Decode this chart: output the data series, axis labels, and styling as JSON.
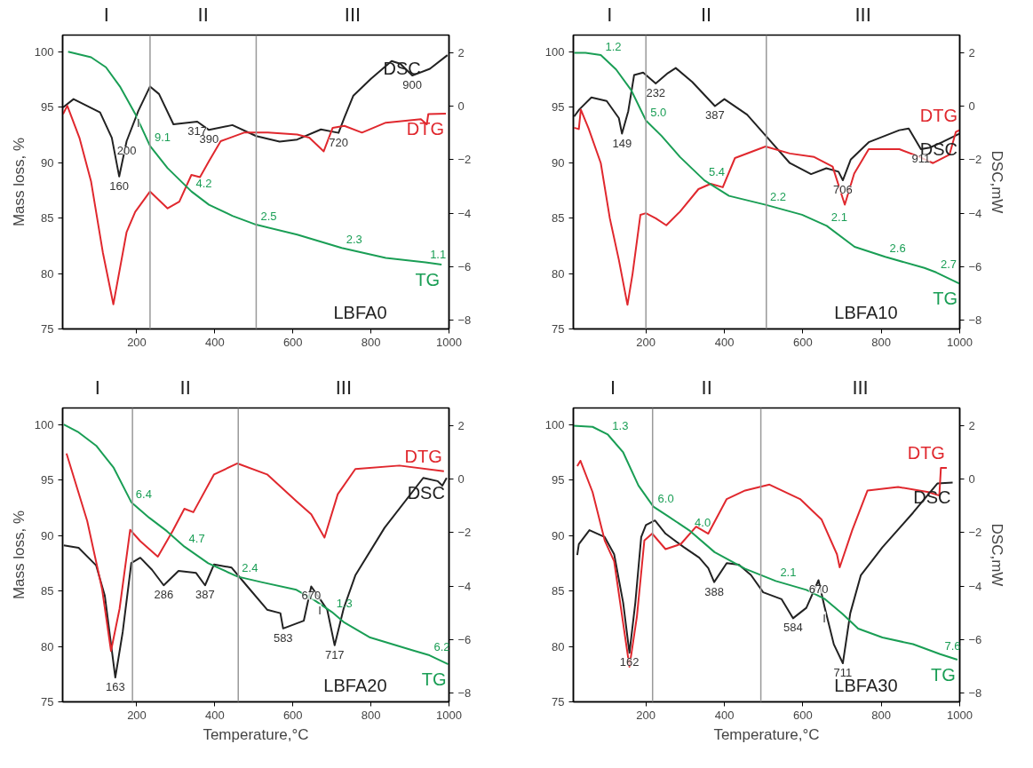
{
  "chart_data": [
    {
      "type": "line",
      "xlim": [
        10,
        1000
      ],
      "ylim": [
        75,
        101.5
      ],
      "y2lim": [
        -8.32,
        2.65
      ],
      "xticks": [
        200,
        400,
        600,
        800,
        1000
      ],
      "yticks": [
        75,
        80,
        85,
        90,
        95,
        100
      ],
      "y2ticks": [
        -8,
        -6,
        -4,
        -2,
        0,
        2
      ],
      "ylabel": "Mass loss, %",
      "grid": false,
      "series": [
        {
          "name": "DSC",
          "color": "#222222",
          "axis": "y2",
          "x": [
            11,
            38,
            106,
            136,
            155,
            174,
            204,
            234,
            257,
            294,
            355,
            385,
            445,
            506,
            566,
            611,
            672,
            717,
            732,
            755,
            800,
            853,
            875,
            906,
            951,
            996
          ],
          "values": [
            -0.05,
            0.26,
            -0.24,
            -1.18,
            -2.63,
            -1.31,
            -0.18,
            0.73,
            0.45,
            -0.68,
            -0.58,
            -0.89,
            -0.71,
            -1.12,
            -1.33,
            -1.25,
            -0.87,
            -1.0,
            -0.43,
            0.39,
            1.02,
            1.68,
            1.58,
            1.14,
            1.39,
            1.9
          ]
        },
        {
          "name": "DTG",
          "color": "#e0282e",
          "axis": "y2",
          "x": [
            11,
            22,
            53,
            83,
            113,
            140,
            158,
            174,
            196,
            234,
            279,
            309,
            340,
            362,
            385,
            415,
            475,
            536,
            611,
            642,
            679,
            702,
            732,
            777,
            838,
            928,
            943,
            947,
            992
          ],
          "values": [
            -0.3,
            0.01,
            -1.18,
            -2.82,
            -5.46,
            -7.4,
            -5.97,
            -4.7,
            -3.95,
            -3.19,
            -3.82,
            -3.57,
            -2.57,
            -2.65,
            -2.06,
            -1.31,
            -0.99,
            -0.99,
            -1.06,
            -1.18,
            -1.69,
            -0.81,
            -0.74,
            -0.99,
            -0.62,
            -0.49,
            -0.68,
            -0.3,
            -0.28
          ]
        },
        {
          "name": "TG",
          "color": "#1a9e55",
          "x": [
            24,
            83,
            121,
            158,
            196,
            234,
            279,
            340,
            385,
            445,
            506,
            611,
            725,
            838,
            940,
            981
          ],
          "values": [
            100,
            99.5,
            98.6,
            96.8,
            94.4,
            91.5,
            89.5,
            87.4,
            86.2,
            85.2,
            84.4,
            83.5,
            82.3,
            81.4,
            81.0,
            80.8
          ]
        }
      ],
      "ref_lines": [
        {
          "axis": "x",
          "value": 234,
          "color": "#999999"
        },
        {
          "axis": "x",
          "value": 506,
          "color": "#999999"
        }
      ],
      "annotations": [
        "I",
        "II",
        "III",
        "LBFA0",
        {
          "text": "160",
          "x": 155,
          "y": 88.75
        },
        {
          "text": "200",
          "x": 174,
          "y": 91.93
        },
        {
          "text": "I",
          "x": 204,
          "y": 94.66
        },
        {
          "text": "317",
          "x": 355,
          "y": 93.7
        },
        {
          "text": "390",
          "x": 385,
          "y": 92.95
        },
        {
          "text": "720",
          "x": 717,
          "y": 92.68
        },
        {
          "text": "900",
          "x": 906,
          "y": 97.85
        },
        {
          "text": "9.1",
          "x": 234,
          "y": 91.5
        },
        {
          "text": "4.2",
          "x": 340,
          "y": 87.4
        },
        {
          "text": "2.5",
          "x": 506,
          "y": 84.4
        },
        {
          "text": "2.3",
          "x": 725,
          "y": 82.3
        },
        {
          "text": "1.1",
          "x": 940,
          "y": 81.0
        }
      ]
    },
    {
      "type": "line",
      "xlim": [
        15,
        1000
      ],
      "ylim": [
        75,
        101.5
      ],
      "y2lim": [
        -8.32,
        2.65
      ],
      "xticks": [
        200,
        400,
        600,
        800,
        1000
      ],
      "yticks": [
        75,
        80,
        85,
        90,
        95,
        100
      ],
      "y2ticks": [
        -8,
        -6,
        -4,
        -2,
        0,
        2
      ],
      "y2label": "DSC,mW",
      "grid": false,
      "series": [
        {
          "name": "DSC",
          "color": "#222222",
          "axis": "y2",
          "x": [
            17,
            30,
            61,
            100,
            131,
            139,
            155,
            170,
            193,
            225,
            256,
            276,
            318,
            376,
            400,
            458,
            513,
            567,
            621,
            660,
            691,
            702,
            722,
            768,
            846,
            870,
            901,
            924,
            955,
            999
          ],
          "values": [
            -0.39,
            -0.13,
            0.32,
            0.19,
            -0.45,
            -1.03,
            -0.19,
            1.16,
            1.25,
            0.84,
            1.23,
            1.42,
            0.9,
            0.0,
            0.26,
            -0.32,
            -1.23,
            -2.13,
            -2.54,
            -2.32,
            -2.45,
            -2.77,
            -2.0,
            -1.35,
            -0.9,
            -0.84,
            -1.61,
            -1.55,
            -1.35,
            -1.03
          ]
        },
        {
          "name": "DTG",
          "color": "#e0282e",
          "axis": "y2",
          "x": [
            17,
            29,
            34,
            54,
            85,
            108,
            131,
            153,
            166,
            186,
            200,
            225,
            252,
            287,
            334,
            365,
            396,
            427,
            505,
            567,
            629,
            676,
            707,
            731,
            768,
            846,
            893,
            932,
            974,
            990,
            999
          ],
          "values": [
            -0.81,
            -0.86,
            -0.13,
            -0.84,
            -2.13,
            -4.19,
            -5.74,
            -7.42,
            -6.26,
            -4.06,
            -4.0,
            -4.19,
            -4.45,
            -3.94,
            -3.1,
            -2.9,
            -3.03,
            -1.94,
            -1.51,
            -1.77,
            -1.9,
            -2.26,
            -3.68,
            -2.52,
            -1.61,
            -1.61,
            -1.87,
            -2.13,
            -1.81,
            -0.97,
            -0.9
          ]
        },
        {
          "name": "TG",
          "color": "#1a9e55",
          "x": [
            17,
            46,
            85,
            124,
            163,
            200,
            240,
            287,
            349,
            412,
            505,
            598,
            661,
            732,
            810,
            910,
            940,
            999
          ],
          "values": [
            99.9,
            99.9,
            99.7,
            98.4,
            96.5,
            93.8,
            92.4,
            90.5,
            88.4,
            87.0,
            86.2,
            85.3,
            84.3,
            82.4,
            81.5,
            80.5,
            80.1,
            79.1
          ]
        }
      ],
      "ref_lines": [
        {
          "axis": "x",
          "value": 200,
          "color": "#999999"
        },
        {
          "axis": "x",
          "value": 507,
          "color": "#999999"
        }
      ],
      "annotations": [
        "I",
        "II",
        "III",
        "LBFA10",
        {
          "text": "149",
          "x": 139,
          "y": 92.61
        },
        {
          "text": "232",
          "x": 225,
          "y": 97.13
        },
        {
          "text": "387",
          "x": 376,
          "y": 95.1
        },
        {
          "text": "706",
          "x": 702,
          "y": 88.41
        },
        {
          "text": "911",
          "x": 901,
          "y": 91.21
        },
        {
          "text": "1.2",
          "x": 85,
          "y": 99.7
        },
        {
          "text": "5.0",
          "x": 200,
          "y": 93.8
        },
        {
          "text": "5.4",
          "x": 349,
          "y": 88.4
        },
        {
          "text": "2.2",
          "x": 505,
          "y": 86.2
        },
        {
          "text": "2.1",
          "x": 661,
          "y": 84.3
        },
        {
          "text": "2.6",
          "x": 810,
          "y": 81.5
        },
        {
          "text": "2.7",
          "x": 940,
          "y": 80.1
        }
      ]
    },
    {
      "type": "line",
      "xlim": [
        10,
        1000
      ],
      "ylim": [
        75,
        101.5
      ],
      "y2lim": [
        -8.32,
        2.65
      ],
      "xticks": [
        200,
        400,
        600,
        800,
        1000
      ],
      "yticks": [
        75,
        80,
        85,
        90,
        95,
        100
      ],
      "y2ticks": [
        -8,
        -6,
        -4,
        -2,
        0,
        2
      ],
      "xlabel": "Temperature,°C",
      "ylabel": "Mass loss, %",
      "grid": false,
      "series": [
        {
          "name": "DSC",
          "color": "#222222",
          "axis": "y2",
          "x": [
            13,
            51,
            96,
            118,
            145,
            164,
            186,
            209,
            239,
            269,
            307,
            352,
            375,
            398,
            443,
            481,
            534,
            568,
            575,
            628,
            647,
            669,
            688,
            707,
            730,
            760,
            835,
            934,
            971,
            983,
            994
          ],
          "values": [
            -2.48,
            -2.57,
            -3.23,
            -4.35,
            -7.41,
            -5.71,
            -3.14,
            -2.94,
            -3.39,
            -3.97,
            -3.43,
            -3.51,
            -3.97,
            -3.19,
            -3.31,
            -3.97,
            -4.88,
            -5.01,
            -5.58,
            -5.29,
            -4.01,
            -4.47,
            -4.88,
            -6.21,
            -4.84,
            -3.6,
            -1.82,
            0.04,
            -0.08,
            -0.25,
            0.04
          ]
        },
        {
          "name": "DTG",
          "color": "#e0282e",
          "axis": "y2",
          "x": [
            20,
            73,
            111,
            134,
            156,
            183,
            209,
            254,
            292,
            322,
            345,
            398,
            458,
            534,
            609,
            647,
            681,
            715,
            760,
            873,
            987
          ],
          "values": [
            0.95,
            -1.57,
            -4.1,
            -6.42,
            -4.84,
            -1.9,
            -2.32,
            -2.9,
            -1.94,
            -1.11,
            -1.24,
            0.17,
            0.58,
            0.17,
            -0.83,
            -1.32,
            -2.19,
            -0.57,
            0.37,
            0.5,
            0.29
          ]
        },
        {
          "name": "TG",
          "color": "#1a9e55",
          "x": [
            13,
            51,
            96,
            141,
            186,
            232,
            277,
            322,
            383,
            458,
            519,
            609,
            654,
            700,
            730,
            798,
            911,
            950,
            998
          ],
          "values": [
            100,
            99.3,
            98.1,
            96.1,
            93.0,
            91.6,
            90.4,
            89.0,
            87.5,
            86.3,
            85.8,
            85.1,
            84.2,
            83.1,
            82.2,
            80.8,
            79.6,
            79.2,
            78.4
          ]
        }
      ],
      "ref_lines": [
        {
          "axis": "x",
          "value": 189,
          "color": "#999999"
        },
        {
          "axis": "x",
          "value": 460,
          "color": "#999999"
        }
      ],
      "annotations": [
        "I",
        "II",
        "III",
        "LBFA20",
        {
          "text": "163",
          "x": 145,
          "y": 77.2
        },
        {
          "text": "286",
          "x": 269,
          "y": 85.51
        },
        {
          "text": "387",
          "x": 375,
          "y": 85.51
        },
        {
          "text": "583",
          "x": 575,
          "y": 81.62
        },
        {
          "text": "670",
          "x": 647,
          "y": 85.41
        },
        {
          "text": "I",
          "x": 669,
          "y": 84.3
        },
        {
          "text": "717",
          "x": 707,
          "y": 80.1
        },
        {
          "text": "6.4",
          "x": 186,
          "y": 93.0
        },
        {
          "text": "4.7",
          "x": 322,
          "y": 89.0
        },
        {
          "text": "2.4",
          "x": 458,
          "y": 86.3
        },
        {
          "text": "1.3",
          "x": 700,
          "y": 83.1
        },
        {
          "text": "6.2",
          "x": 950,
          "y": 79.2
        }
      ]
    },
    {
      "type": "line",
      "xlim": [
        15,
        1000
      ],
      "ylim": [
        75,
        101.5
      ],
      "y2lim": [
        -8.32,
        2.65
      ],
      "xticks": [
        200,
        400,
        600,
        800,
        1000
      ],
      "yticks": [
        75,
        80,
        85,
        90,
        95,
        100
      ],
      "y2ticks": [
        -8,
        -6,
        -4,
        -2,
        0,
        2
      ],
      "xlabel": "Temperature,°C",
      "y2label": "DSC,mW",
      "grid": false,
      "series": [
        {
          "name": "DSC",
          "color": "#222222",
          "axis": "y2",
          "x": [
            25,
            29,
            56,
            95,
            119,
            142,
            158,
            173,
            188,
            200,
            223,
            250,
            297,
            336,
            359,
            374,
            406,
            437,
            468,
            499,
            546,
            575,
            609,
            640,
            655,
            679,
            702,
            721,
            748,
            803,
            881,
            943,
            982
          ],
          "values": [
            -2.84,
            -2.43,
            -1.91,
            -2.17,
            -2.81,
            -4.62,
            -6.49,
            -4.62,
            -2.17,
            -1.72,
            -1.55,
            -2.04,
            -2.55,
            -2.94,
            -3.33,
            -3.85,
            -3.14,
            -3.2,
            -3.59,
            -4.23,
            -4.49,
            -5.2,
            -4.81,
            -3.78,
            -4.75,
            -6.17,
            -6.88,
            -5.01,
            -3.59,
            -2.55,
            -1.26,
            -0.17,
            -0.13
          ]
        },
        {
          "name": "DTG",
          "color": "#e0282e",
          "axis": "y2",
          "x": [
            25,
            33,
            64,
            95,
            119,
            142,
            158,
            177,
            196,
            216,
            250,
            289,
            328,
            359,
            406,
            453,
            515,
            593,
            648,
            687,
            694,
            726,
            765,
            843,
            920,
            948,
            952,
            967
          ],
          "values": [
            0.48,
            0.68,
            -0.49,
            -2.3,
            -3.07,
            -5.39,
            -7.01,
            -5.14,
            -2.3,
            -2.04,
            -2.62,
            -2.43,
            -1.78,
            -2.04,
            -0.75,
            -0.43,
            -0.21,
            -0.75,
            -1.52,
            -2.81,
            -3.3,
            -1.91,
            -0.43,
            -0.3,
            -0.49,
            -0.62,
            0.41,
            0.41
          ]
        },
        {
          "name": "TG",
          "color": "#1a9e55",
          "x": [
            15,
            64,
            103,
            142,
            181,
            219,
            258,
            313,
            375,
            453,
            531,
            609,
            655,
            702,
            741,
            803,
            881,
            950,
            994
          ],
          "values": [
            99.9,
            99.8,
            99.1,
            97.5,
            94.5,
            92.6,
            91.7,
            90.4,
            88.5,
            87.0,
            85.9,
            85.1,
            84.3,
            82.9,
            81.6,
            80.8,
            80.2,
            79.3,
            78.8
          ]
        }
      ],
      "ref_lines": [
        {
          "axis": "x",
          "value": 217,
          "color": "#999999"
        },
        {
          "axis": "x",
          "value": 493,
          "color": "#999999"
        }
      ],
      "annotations": [
        "I",
        "II",
        "III",
        "LBFA30",
        {
          "text": "162",
          "x": 158,
          "y": 79.42
        },
        {
          "text": "388",
          "x": 374,
          "y": 85.8
        },
        {
          "text": "584",
          "x": 575,
          "y": 82.54
        },
        {
          "text": "670",
          "x": 640,
          "y": 85.97
        },
        {
          "text": "I",
          "x": 655,
          "y": 83.62
        },
        {
          "text": "711",
          "x": 702,
          "y": 78.48
        },
        {
          "text": "1.3",
          "x": 103,
          "y": 99.1
        },
        {
          "text": "6.0",
          "x": 219,
          "y": 92.6
        },
        {
          "text": "4.0",
          "x": 313,
          "y": 90.4
        },
        {
          "text": "2.1",
          "x": 531,
          "y": 85.9
        },
        {
          "text": "7.6",
          "x": 950,
          "y": 79.3
        }
      ]
    }
  ]
}
